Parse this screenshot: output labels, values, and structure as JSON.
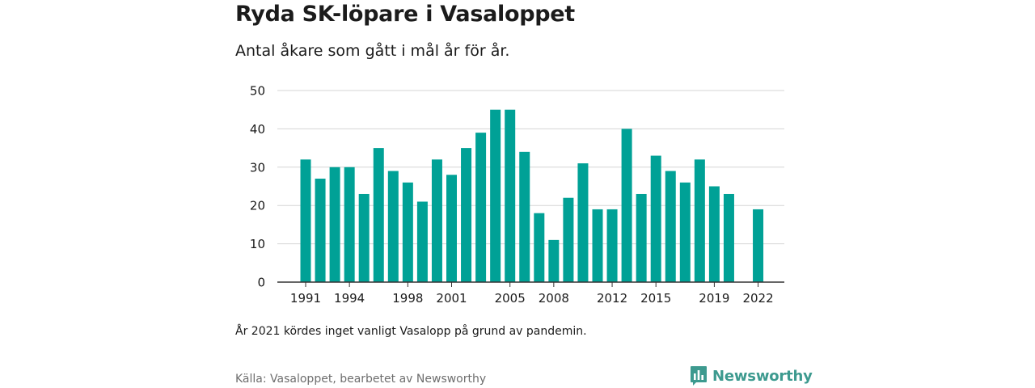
{
  "header": {
    "title": "Ryda SK-löpare i Vasaloppet",
    "subtitle": "Antal åkare som gått i mål år för år."
  },
  "footer": {
    "note": "År 2021 kördes inget vanligt Vasalopp på grund av pandemin.",
    "source": "Källa: Vasaloppet, bearbetet av Newsworthy",
    "brand": "Newsworthy"
  },
  "colors": {
    "bar": "#00a196",
    "brand": "#3d9a8f",
    "grid": "#d6d6d6",
    "axis": "#333333",
    "text": "#1b1b1b"
  },
  "icons": {
    "brand_logo": "newsworthy-logo-icon"
  },
  "chart_data": {
    "type": "bar",
    "title": "Ryda SK-löpare i Vasaloppet",
    "subtitle": "Antal åkare som gått i mål år för år.",
    "xlabel": "",
    "ylabel": "",
    "categories": [
      "1991",
      "1992",
      "1993",
      "1994",
      "1995",
      "1996",
      "1997",
      "1998",
      "1999",
      "2000",
      "2001",
      "2002",
      "2003",
      "2004",
      "2005",
      "2006",
      "2007",
      "2008",
      "2009",
      "2010",
      "2011",
      "2012",
      "2013",
      "2014",
      "2015",
      "2016",
      "2017",
      "2018",
      "2019",
      "2020",
      "2021",
      "2022"
    ],
    "values": [
      32,
      27,
      30,
      30,
      23,
      35,
      29,
      26,
      21,
      32,
      28,
      35,
      39,
      45,
      45,
      34,
      18,
      11,
      22,
      31,
      19,
      19,
      40,
      23,
      33,
      29,
      26,
      32,
      25,
      23,
      null,
      19
    ],
    "x_tick_labels": [
      "1991",
      "1994",
      "1998",
      "2001",
      "2005",
      "2008",
      "2012",
      "2015",
      "2019",
      "2022"
    ],
    "y_ticks": [
      0,
      10,
      20,
      30,
      40,
      50
    ],
    "ylim": [
      0,
      50
    ],
    "grid": true,
    "legend": "none"
  }
}
